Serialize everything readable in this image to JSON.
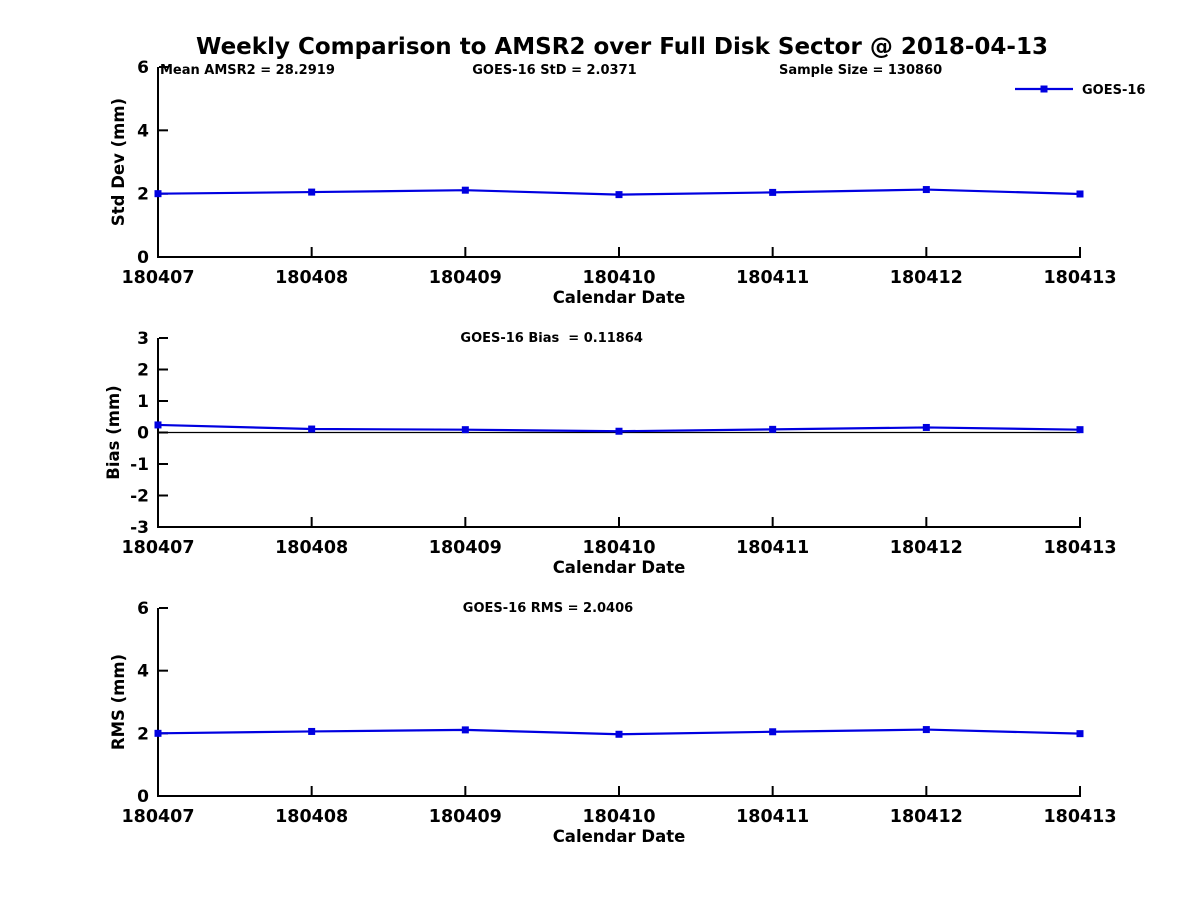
{
  "figure": {
    "title": "Weekly Comparison to AMSR2 over Full Disk Sector @ 2018-04-13",
    "background_color": "#ffffff",
    "text_color": "#000000",
    "accent_color": "#0000e0"
  },
  "chart_data": [
    {
      "type": "line",
      "name": "std-dev-vs-date",
      "annotations": [
        "Mean AMSR2 = 28.2919",
        "GOES-16 StD = 2.0371",
        "Sample Size = 130860"
      ],
      "categories": [
        "180407",
        "180408",
        "180409",
        "180410",
        "180411",
        "180412",
        "180413"
      ],
      "series": [
        {
          "name": "GOES-16",
          "color": "#0000e0",
          "marker": "square",
          "values": [
            2.0,
            2.05,
            2.11,
            1.97,
            2.04,
            2.13,
            1.99
          ]
        }
      ],
      "xlabel": "Calendar Date",
      "ylabel": "Std Dev (mm)",
      "ylim": [
        0,
        6
      ],
      "yticks": [
        0,
        2,
        4,
        6
      ],
      "grid": false,
      "zero_line": false,
      "legend": {
        "visible": true,
        "position": "top-right",
        "label": "GOES-16"
      }
    },
    {
      "type": "line",
      "name": "bias-vs-date",
      "annotations": [
        "GOES-16 Bias  = 0.11864"
      ],
      "categories": [
        "180407",
        "180408",
        "180409",
        "180410",
        "180411",
        "180412",
        "180413"
      ],
      "series": [
        {
          "name": "GOES-16",
          "color": "#0000e0",
          "marker": "square",
          "values": [
            0.24,
            0.11,
            0.09,
            0.04,
            0.1,
            0.16,
            0.09
          ]
        }
      ],
      "xlabel": "Calendar Date",
      "ylabel": "Bias (mm)",
      "ylim": [
        -3,
        3
      ],
      "yticks": [
        -3,
        -2,
        -1,
        0,
        1,
        2,
        3
      ],
      "grid": false,
      "zero_line": true,
      "legend": {
        "visible": false
      }
    },
    {
      "type": "line",
      "name": "rms-vs-date",
      "annotations": [
        "GOES-16 RMS = 2.0406"
      ],
      "categories": [
        "180407",
        "180408",
        "180409",
        "180410",
        "180411",
        "180412",
        "180413"
      ],
      "series": [
        {
          "name": "GOES-16",
          "color": "#0000e0",
          "marker": "square",
          "values": [
            2.0,
            2.06,
            2.11,
            1.97,
            2.05,
            2.12,
            1.99
          ]
        }
      ],
      "xlabel": "Calendar Date",
      "ylabel": "RMS (mm)",
      "ylim": [
        0,
        6
      ],
      "yticks": [
        0,
        2,
        4,
        6
      ],
      "grid": false,
      "zero_line": false,
      "legend": {
        "visible": false
      }
    }
  ]
}
